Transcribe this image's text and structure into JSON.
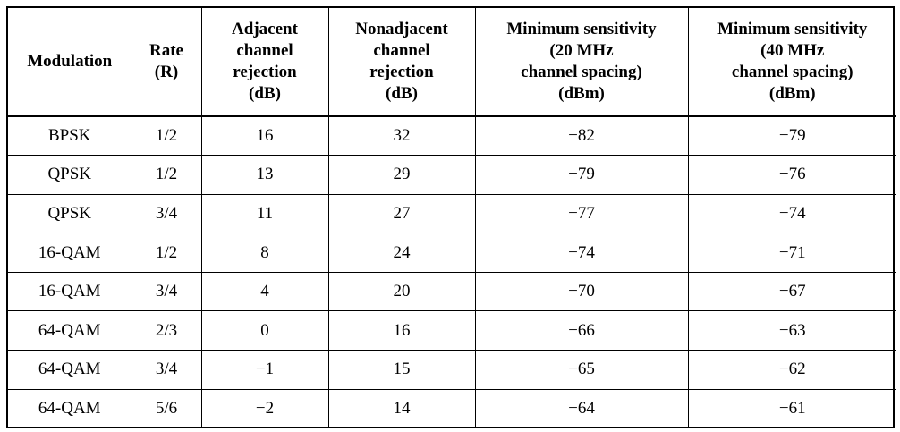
{
  "table": {
    "columns": [
      {
        "lines": [
          "Modulation"
        ]
      },
      {
        "lines": [
          "Rate",
          "(R)"
        ]
      },
      {
        "lines": [
          "Adjacent",
          "channel",
          "rejection",
          "(dB)"
        ]
      },
      {
        "lines": [
          "Nonadjacent",
          "channel",
          "rejection",
          "(dB)"
        ]
      },
      {
        "lines": [
          "Minimum sensitivity",
          "(20 MHz",
          "channel spacing)",
          "(dBm)"
        ]
      },
      {
        "lines": [
          "Minimum sensitivity",
          "(40 MHz",
          "channel spacing)",
          "(dBm)"
        ]
      }
    ],
    "rows": [
      [
        "BPSK",
        "1/2",
        "16",
        "32",
        "−82",
        "−79"
      ],
      [
        "QPSK",
        "1/2",
        "13",
        "29",
        "−79",
        "−76"
      ],
      [
        "QPSK",
        "3/4",
        "11",
        "27",
        "−77",
        "−74"
      ],
      [
        "16-QAM",
        "1/2",
        "8",
        "24",
        "−74",
        "−71"
      ],
      [
        "16-QAM",
        "3/4",
        "4",
        "20",
        "−70",
        "−67"
      ],
      [
        "64-QAM",
        "2/3",
        "0",
        "16",
        "−66",
        "−63"
      ],
      [
        "64-QAM",
        "3/4",
        "−1",
        "15",
        "−65",
        "−62"
      ],
      [
        "64-QAM",
        "5/6",
        "−2",
        "14",
        "−64",
        "−61"
      ]
    ]
  }
}
